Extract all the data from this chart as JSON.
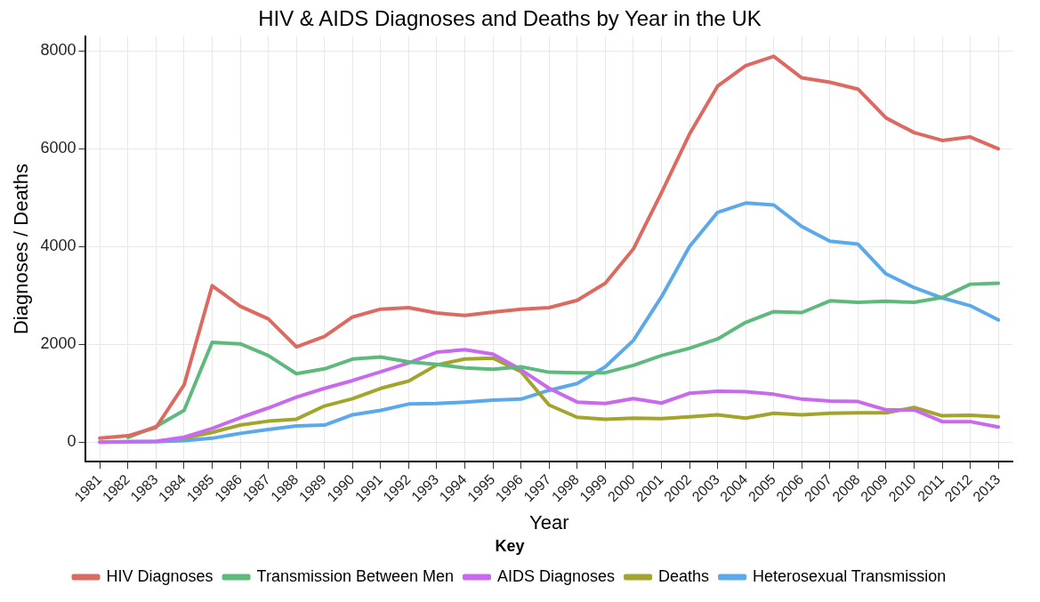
{
  "chart_data": {
    "type": "line",
    "title": "HIV & AIDS Diagnoses and Deaths by Year in the UK",
    "xlabel": "Year",
    "ylabel": "Diagnoses / Deaths",
    "legend_title": "Key",
    "categories": [
      "1981",
      "1982",
      "1983",
      "1984",
      "1985",
      "1986",
      "1987",
      "1988",
      "1989",
      "1990",
      "1991",
      "1992",
      "1993",
      "1994",
      "1995",
      "1996",
      "1997",
      "1998",
      "1999",
      "2000",
      "2001",
      "2002",
      "2003",
      "2004",
      "2005",
      "2006",
      "2007",
      "2008",
      "2009",
      "2010",
      "2011",
      "2012",
      "2013"
    ],
    "series": [
      {
        "name": "HIV Diagnoses",
        "color": "#dc6a60",
        "values": [
          80,
          130,
          300,
          1170,
          3200,
          2780,
          2520,
          1950,
          2160,
          2560,
          2720,
          2750,
          2640,
          2590,
          2660,
          2720,
          2750,
          2900,
          3250,
          3950,
          5100,
          6300,
          7280,
          7700,
          7890,
          7450,
          7360,
          7220,
          6630,
          6330,
          6170,
          6240,
          6000
        ]
      },
      {
        "name": "Transmission Between Men",
        "color": "#5db97c",
        "values": [
          null,
          100,
          320,
          650,
          2040,
          2010,
          1770,
          1400,
          1500,
          1700,
          1740,
          1640,
          1590,
          1520,
          1490,
          1540,
          1430,
          1420,
          1420,
          1570,
          1770,
          1920,
          2110,
          2450,
          2670,
          2650,
          2890,
          2860,
          2880,
          2860,
          2960,
          3230,
          3250
        ]
      },
      {
        "name": "AIDS Diagnoses",
        "color": "#c96aee",
        "values": [
          0,
          10,
          20,
          100,
          280,
          500,
          700,
          920,
          1100,
          1260,
          1440,
          1620,
          1840,
          1890,
          1800,
          1480,
          1100,
          820,
          790,
          890,
          800,
          1000,
          1040,
          1030,
          980,
          880,
          840,
          830,
          660,
          660,
          420,
          420,
          310
        ]
      },
      {
        "name": "Deaths",
        "color": "#a2a42b",
        "values": [
          null,
          null,
          null,
          80,
          200,
          350,
          430,
          470,
          740,
          890,
          1100,
          1250,
          1580,
          1700,
          1720,
          1440,
          760,
          510,
          470,
          490,
          480,
          520,
          560,
          490,
          590,
          560,
          590,
          600,
          600,
          710,
          540,
          550,
          520
        ]
      },
      {
        "name": "Heterosexual Transmission",
        "color": "#5ba9ea",
        "values": [
          0,
          10,
          10,
          30,
          80,
          180,
          260,
          330,
          350,
          560,
          650,
          780,
          790,
          820,
          860,
          880,
          1060,
          1200,
          1540,
          2080,
          2970,
          4000,
          4700,
          4890,
          4850,
          4410,
          4110,
          4050,
          3440,
          3160,
          2950,
          2790,
          2500
        ]
      }
    ],
    "ylim": [
      -400,
      8300
    ],
    "yticks": [
      0,
      2000,
      4000,
      6000,
      8000
    ],
    "grid": true,
    "legend": "bottom",
    "marker": "none",
    "line_style": "solid"
  }
}
